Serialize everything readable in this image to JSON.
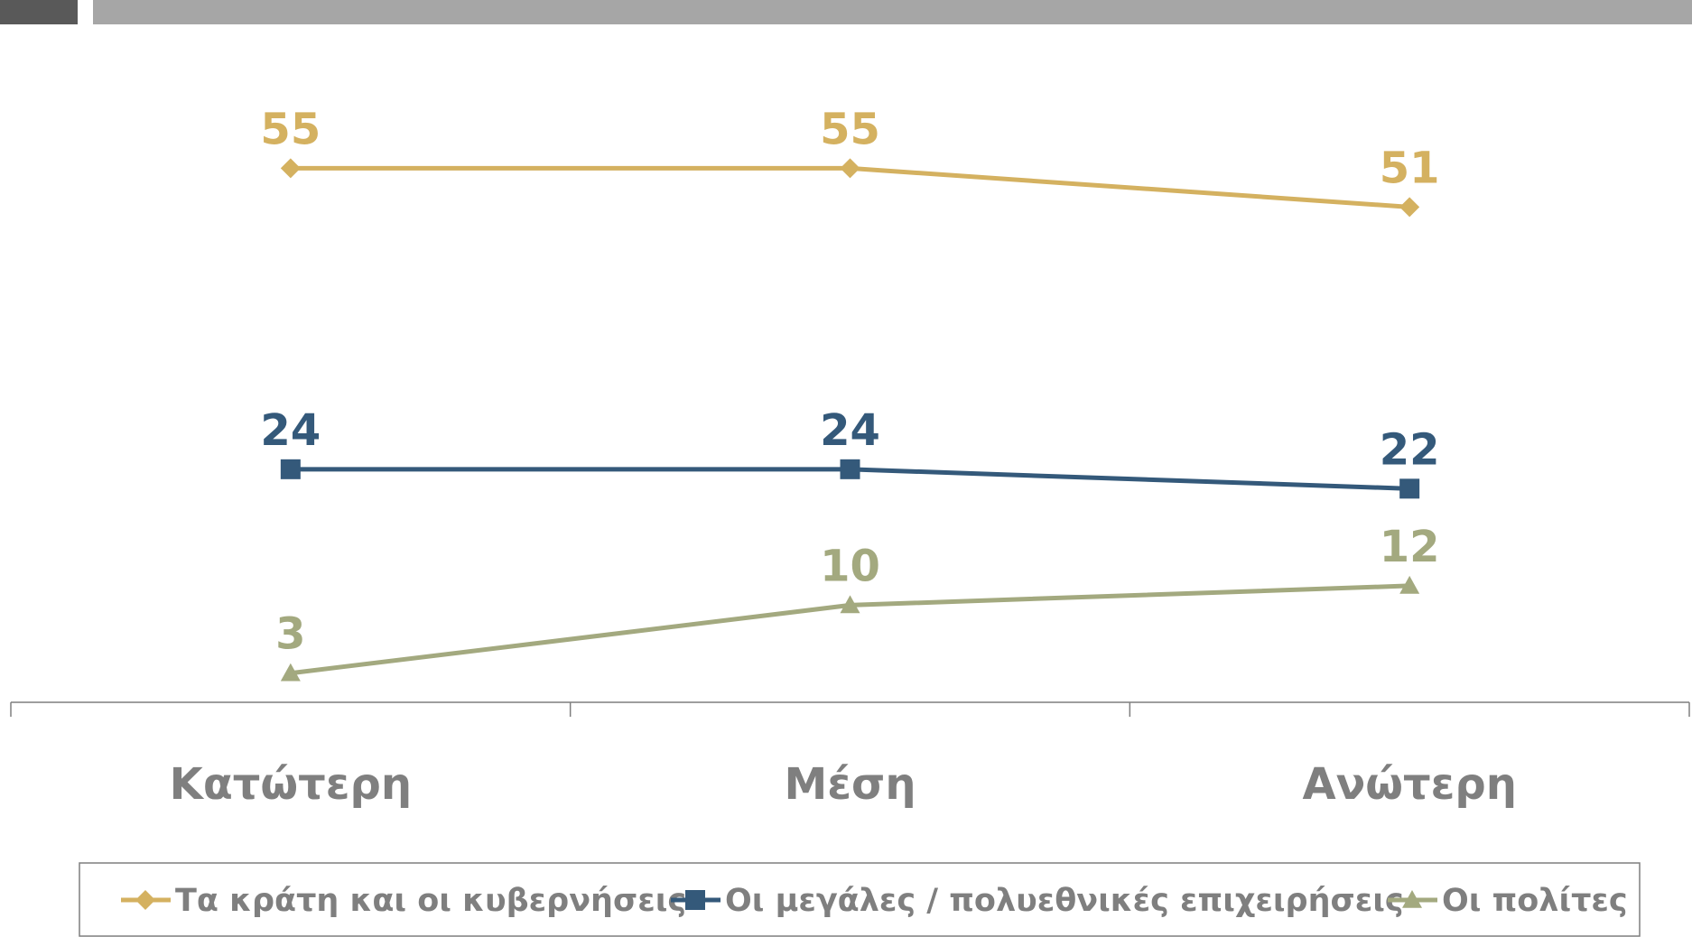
{
  "chart_data": {
    "type": "line",
    "categories": [
      "Κατώτερη",
      "Μέση",
      "Ανώτερη"
    ],
    "series": [
      {
        "name": "Τα κράτη και οι κυβερνήσεις",
        "color": "#d4b160",
        "marker": "diamond",
        "values": [
          55,
          55,
          51
        ]
      },
      {
        "name": "Οι μεγάλες / πολυεθνικές επιχειρήσεις",
        "color": "#34597a",
        "marker": "square",
        "values": [
          24,
          24,
          22
        ]
      },
      {
        "name": "Οι πολίτες",
        "color": "#a3a97f",
        "marker": "triangle",
        "values": [
          3,
          10,
          12
        ]
      }
    ],
    "ylim": [
      0,
      70
    ],
    "legend": "bottom"
  }
}
